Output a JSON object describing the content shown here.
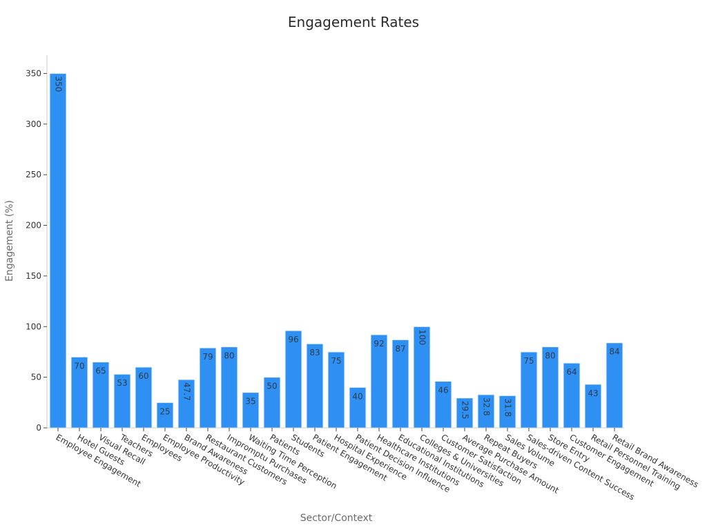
{
  "chart_data": {
    "type": "bar",
    "title": "Engagement Rates",
    "xlabel": "Sector/Context",
    "ylabel": "Engagement (%)",
    "ylim": [
      0,
      368
    ],
    "yticks": [
      0,
      50,
      100,
      150,
      200,
      250,
      300,
      350
    ],
    "grid": false,
    "bar_color": "#2f90f4",
    "categories": [
      "Employee Engagement",
      "Hotel Guests",
      "Visual Recall",
      "Teachers",
      "Employees",
      "Employee Productivity",
      "Brand Awareness",
      "Restaurant Customers",
      "Impromptu Purchases",
      "Waiting Time Perception",
      "Patients",
      "Students",
      "Patient Engagement",
      "Hospital Experience",
      "Patient Decision Influence",
      "Healthcare Institutions",
      "Educational Institutions",
      "Colleges & Universities",
      "Customer Satisfaction",
      "Average Purchase Amount",
      "Repeat Buyers",
      "Sales Volume",
      "Sales-driven Content Success",
      "Store Entry",
      "Customer Engagement",
      "Retail Personnel Training",
      "Retail Brand Awareness"
    ],
    "values": [
      350,
      70,
      65,
      53,
      60,
      25,
      47.7,
      79,
      80,
      35,
      50,
      96,
      83,
      75,
      40,
      92,
      87,
      100,
      46,
      29.5,
      32.8,
      31.8,
      75,
      80,
      64,
      43,
      84
    ],
    "value_labels": [
      "350",
      "70",
      "65",
      "53",
      "60",
      "25",
      "47.7",
      "79",
      "80",
      "35",
      "50",
      "96",
      "83",
      "75",
      "40",
      "92",
      "87",
      "100",
      "46",
      "29.5",
      "32.8",
      "31.8",
      "75",
      "80",
      "64",
      "43",
      "84"
    ]
  }
}
